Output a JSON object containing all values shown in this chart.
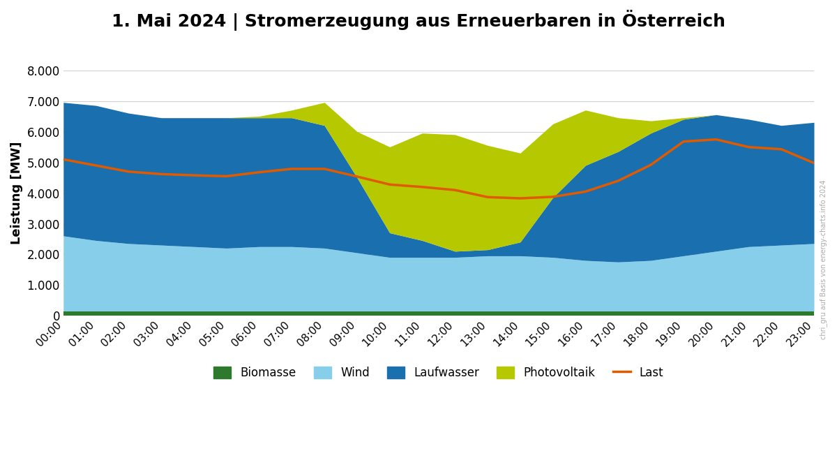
{
  "title": "1. Mai 2024 | Stromerzeugung aus Erneuerbaren in Österreich",
  "ylabel": "Leistung [MW]",
  "ylim": [
    0,
    8000
  ],
  "yticks": [
    0,
    1000,
    2000,
    3000,
    4000,
    5000,
    6000,
    7000,
    8000
  ],
  "ytick_labels": [
    "0",
    "1.000",
    "2.000",
    "3.000",
    "4.000",
    "5.000",
    "6.000",
    "7.000",
    "8.000"
  ],
  "xtick_labels": [
    "00:00",
    "01:00",
    "02:00",
    "03:00",
    "04:00",
    "05:00",
    "06:00",
    "07:00",
    "08:00",
    "09:00",
    "10:00",
    "11:00",
    "12:00",
    "13:00",
    "14:00",
    "15:00",
    "16:00",
    "17:00",
    "18:00",
    "19:00",
    "20:00",
    "21:00",
    "22:00",
    "23:00"
  ],
  "colors": {
    "biomasse": "#2d7a2d",
    "wind": "#87CEEB",
    "laufwasser": "#1a6faf",
    "photovoltaik": "#b5c800",
    "last": "#e05a00"
  },
  "background": "#ffffff",
  "grid_color": "#d0d0d0",
  "watermark": "chri_gru auf Basis von energy-charts.info 2024",
  "biomasse": [
    155,
    155,
    155,
    155,
    155,
    155,
    155,
    155,
    155,
    155,
    155,
    155,
    155,
    155,
    155,
    155,
    155,
    155,
    155,
    155,
    155,
    155,
    155,
    155
  ],
  "wind": [
    2450,
    2300,
    2200,
    2150,
    2100,
    2050,
    2100,
    2100,
    2050,
    1900,
    1750,
    1750,
    1750,
    1800,
    1800,
    1750,
    1650,
    1600,
    1650,
    1800,
    1950,
    2100,
    2150,
    2200
  ],
  "laufwasser": [
    4350,
    4400,
    4250,
    4150,
    4200,
    4250,
    4200,
    4200,
    4000,
    2450,
    800,
    550,
    200,
    200,
    450,
    1950,
    3100,
    3600,
    4150,
    4450,
    4450,
    4150,
    3900,
    3950
  ],
  "photovoltaik": [
    0,
    0,
    0,
    0,
    0,
    0,
    50,
    250,
    750,
    1500,
    2800,
    3500,
    3800,
    3400,
    2900,
    2400,
    1800,
    1100,
    400,
    50,
    0,
    0,
    0,
    0
  ],
  "last": [
    5100,
    4900,
    4700,
    4620,
    4580,
    4550,
    4680,
    4790,
    4790,
    4540,
    4280,
    4200,
    4100,
    3870,
    3830,
    3880,
    4050,
    4400,
    4920,
    5680,
    5750,
    5500,
    5430,
    4980
  ]
}
